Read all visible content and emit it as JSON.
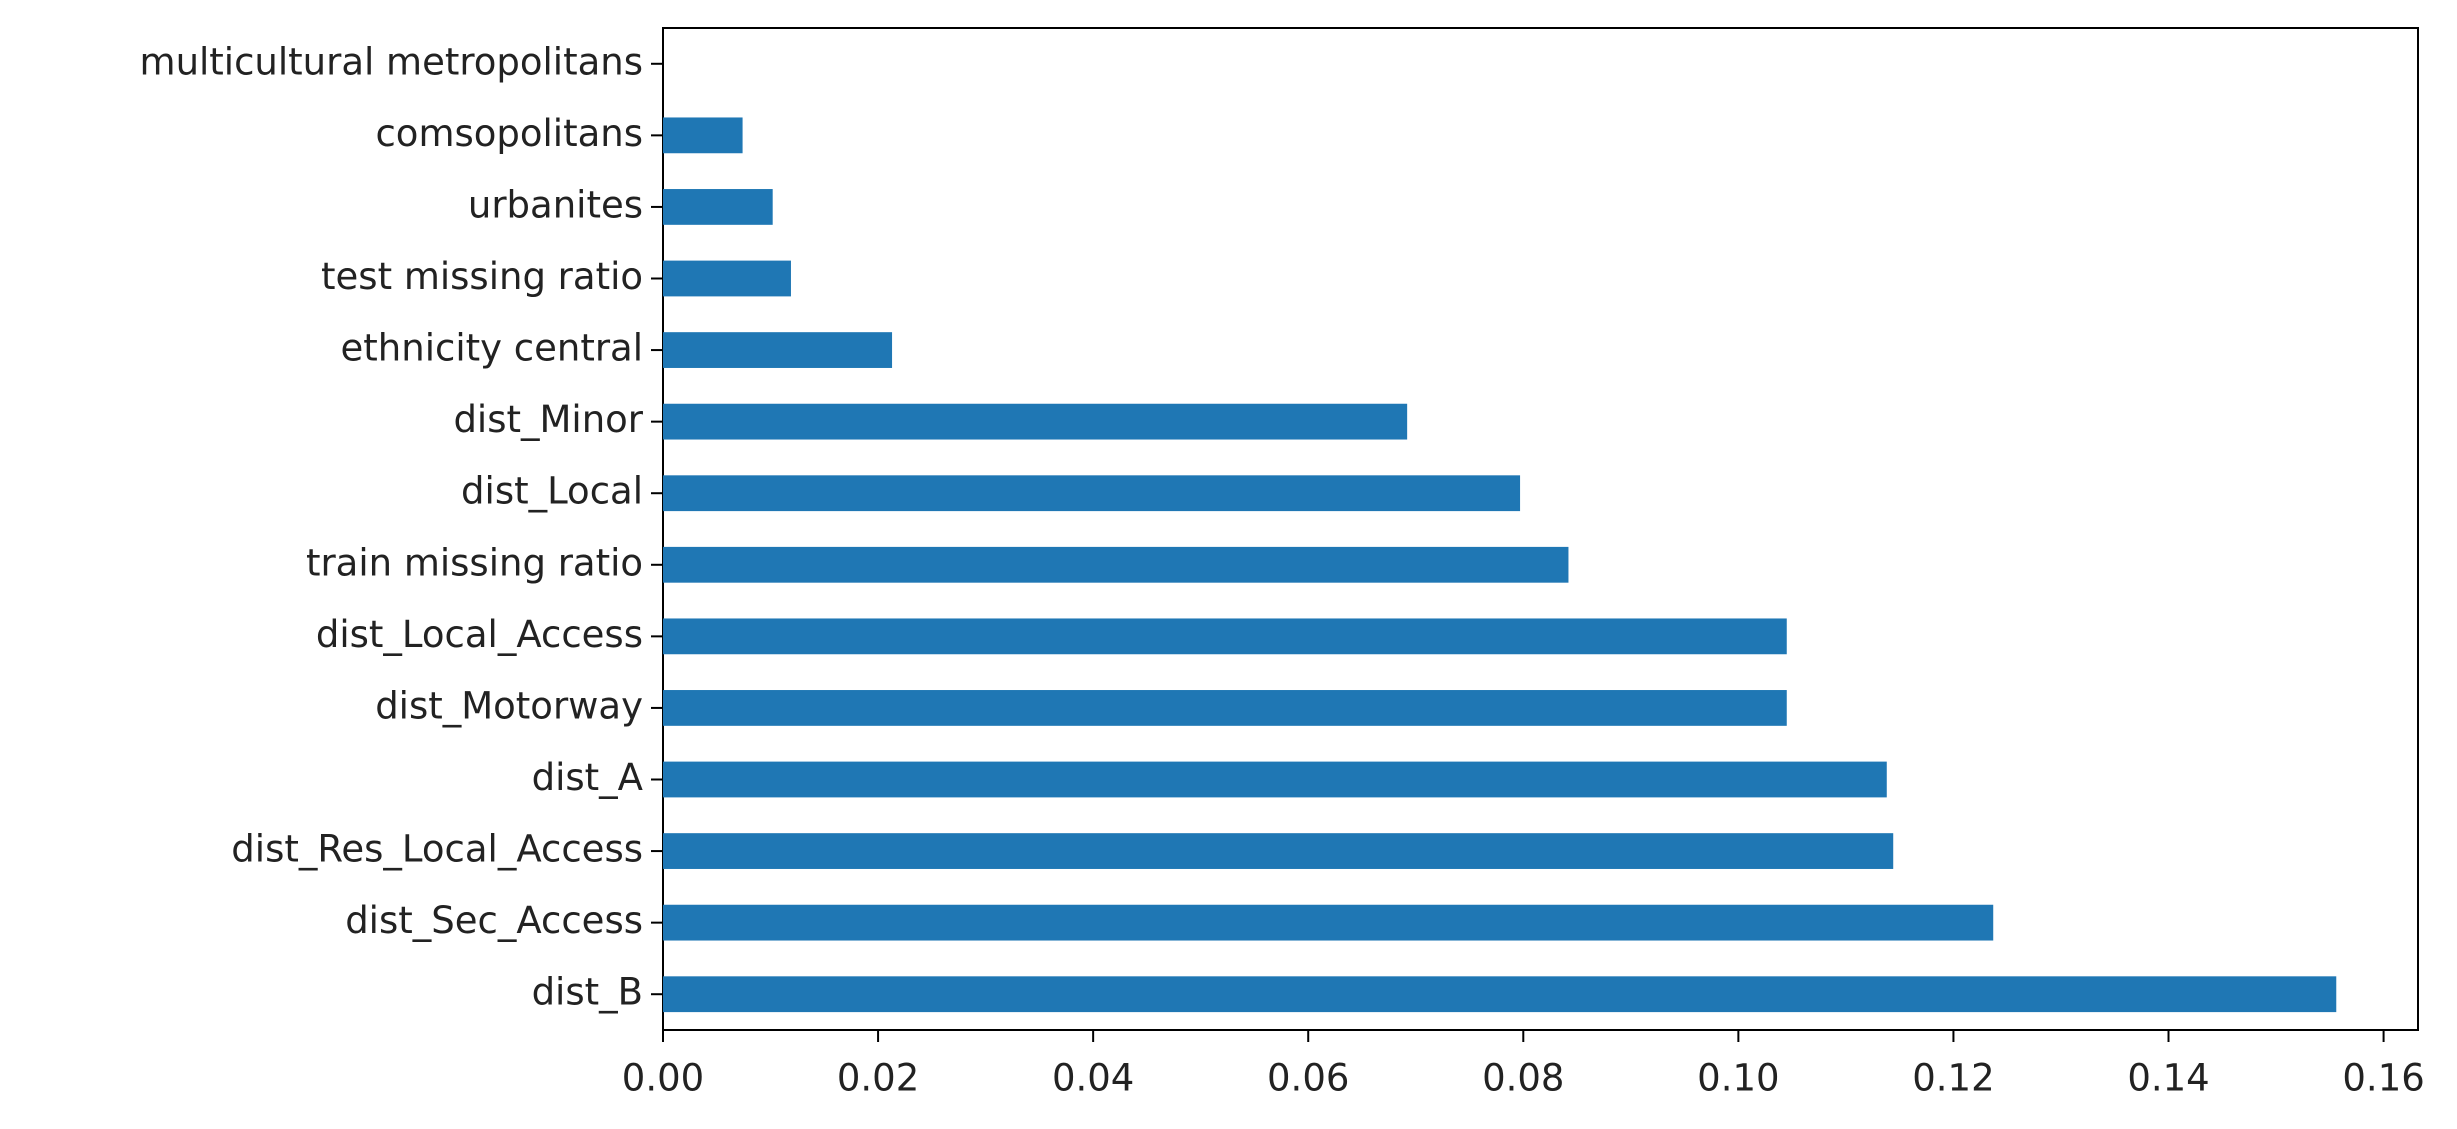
{
  "chart_data": {
    "type": "barh",
    "categories": [
      "dist_B",
      "dist_Sec_Access",
      "dist_Res_Local_Access",
      "dist_A",
      "dist_Motorway",
      "dist_Local_Access",
      "train missing ratio",
      "dist_Local",
      "dist_Minor",
      "ethnicity central",
      "test missing ratio",
      "urbanites",
      "comsopolitans",
      "multicultural metropolitans"
    ],
    "values": [
      0.1556,
      0.1237,
      0.1144,
      0.1138,
      0.1045,
      0.1045,
      0.0842,
      0.0797,
      0.0692,
      0.0213,
      0.0119,
      0.0102,
      0.0074,
      0.0
    ],
    "color": "#1f77b4",
    "xlim": [
      0,
      0.1632
    ],
    "xticks": [
      {
        "value": 0,
        "label": "0.00"
      },
      0.02,
      0.04,
      0.06,
      0.08,
      {
        "value": 0.1,
        "label": "0.10"
      },
      0.12,
      0.14,
      0.16
    ],
    "grid": false
  }
}
